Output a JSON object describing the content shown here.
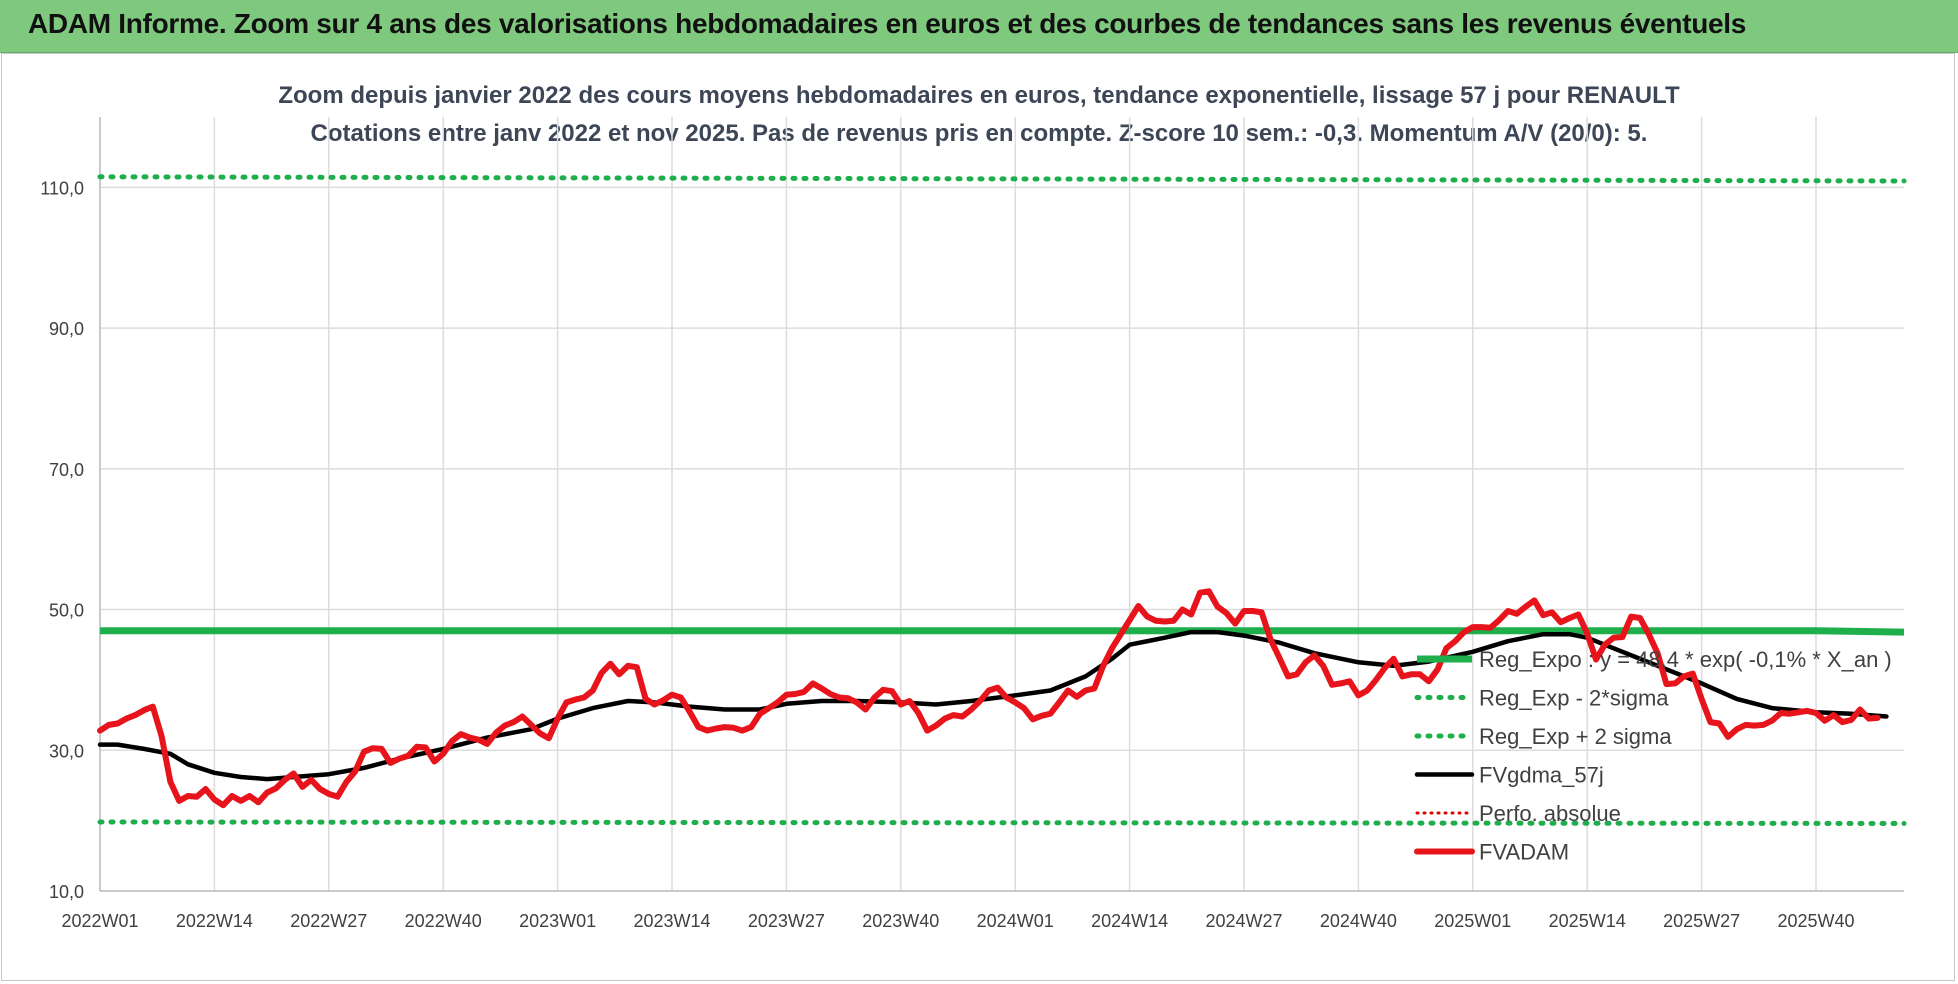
{
  "banner": {
    "title": "ADAM Informe. Zoom sur 4 ans des valorisations hebdomadaires en euros et des courbes de tendances sans les revenus éventuels"
  },
  "colors": {
    "banner_bg": "#7fc97f",
    "regression": "#1fae4c",
    "sigma_bands": "#1fae4c",
    "moving_average": "#000000",
    "perfo_absolue": "#e00000",
    "fvadam": "#e8141b",
    "grid": "#dcdcdc"
  },
  "chart_data": {
    "type": "line",
    "title": "Zoom depuis janvier 2022 des cours moyens hebdomadaires en euros, tendance exponentielle, lissage 57 j pour RENAULT",
    "subtitle": "Cotations entre janv 2022 et nov 2025. Pas de revenus pris en compte. Z-score 10 sem.: -0,3. Momentum A/V (20/0): 5.",
    "xlabel": "",
    "ylabel": "",
    "ylim": [
      10,
      120
    ],
    "yticks": [
      "10,0",
      "30,0",
      "50,0",
      "70,0",
      "90,0",
      "110,0"
    ],
    "ytick_values": [
      10,
      30,
      50,
      70,
      90,
      110
    ],
    "xticks": [
      "2022W01",
      "2022W14",
      "2022W27",
      "2022W40",
      "2023W01",
      "2023W14",
      "2023W27",
      "2023W40",
      "2024W01",
      "2024W14",
      "2024W27",
      "2024W40",
      "2025W01",
      "2025W14",
      "2025W27",
      "2025W40"
    ],
    "grid": true,
    "legend_position": "right",
    "series": [
      {
        "name": "Reg_Expo : y = 48,4 * exp( -0,1% *  X_an )",
        "style": "solid-thick",
        "points": [
          [
            "2022W01",
            47.0
          ],
          [
            "2024W40",
            47.0
          ],
          [
            "2025W40",
            47.0
          ],
          [
            "2025W50",
            46.8
          ]
        ]
      },
      {
        "name": "Reg_Exp - 2*sigma",
        "style": "dotted",
        "points": [
          [
            "2022W01",
            19.8
          ],
          [
            "2025W50",
            19.6
          ]
        ]
      },
      {
        "name": "Reg_Exp + 2 sigma",
        "style": "dotted",
        "points": [
          [
            "2022W01",
            111.5
          ],
          [
            "2025W50",
            110.9
          ]
        ]
      },
      {
        "name": "FVgdma_57j",
        "style": "solid",
        "points": [
          [
            "2022W01",
            30.8
          ],
          [
            "2022W03",
            30.8
          ],
          [
            "2022W06",
            30.2
          ],
          [
            "2022W09",
            29.5
          ],
          [
            "2022W11",
            28.0
          ],
          [
            "2022W14",
            26.8
          ],
          [
            "2022W17",
            26.2
          ],
          [
            "2022W20",
            25.9
          ],
          [
            "2022W23",
            26.2
          ],
          [
            "2022W27",
            26.6
          ],
          [
            "2022W31",
            27.5
          ],
          [
            "2022W35",
            28.8
          ],
          [
            "2022W40",
            30.2
          ],
          [
            "2022W45",
            31.8
          ],
          [
            "2022W50",
            33.0
          ],
          [
            "2023W01",
            34.5
          ],
          [
            "2023W05",
            36.0
          ],
          [
            "2023W09",
            37.0
          ],
          [
            "2023W12",
            36.8
          ],
          [
            "2023W16",
            36.2
          ],
          [
            "2023W20",
            35.8
          ],
          [
            "2023W24",
            35.8
          ],
          [
            "2023W27",
            36.6
          ],
          [
            "2023W31",
            37.0
          ],
          [
            "2023W35",
            37.0
          ],
          [
            "2023W40",
            36.8
          ],
          [
            "2023W44",
            36.5
          ],
          [
            "2023W48",
            37.0
          ],
          [
            "2024W01",
            37.8
          ],
          [
            "2024W05",
            38.5
          ],
          [
            "2024W09",
            40.5
          ],
          [
            "2024W12",
            43.0
          ],
          [
            "2024W14",
            45.0
          ],
          [
            "2024W18",
            46.0
          ],
          [
            "2024W21",
            46.8
          ],
          [
            "2024W24",
            46.8
          ],
          [
            "2024W27",
            46.3
          ],
          [
            "2024W31",
            45.3
          ],
          [
            "2024W35",
            43.8
          ],
          [
            "2024W40",
            42.5
          ],
          [
            "2024W44",
            42.0
          ],
          [
            "2024W48",
            42.6
          ],
          [
            "2025W01",
            44.0
          ],
          [
            "2025W05",
            45.5
          ],
          [
            "2025W09",
            46.5
          ],
          [
            "2025W12",
            46.5
          ],
          [
            "2025W14",
            46.0
          ],
          [
            "2025W18",
            44.0
          ],
          [
            "2025W22",
            42.0
          ],
          [
            "2025W27",
            39.5
          ],
          [
            "2025W31",
            37.3
          ],
          [
            "2025W35",
            36.0
          ],
          [
            "2025W40",
            35.4
          ],
          [
            "2025W44",
            35.2
          ],
          [
            "2025W48",
            34.8
          ]
        ]
      },
      {
        "name": "Perfo. absolue",
        "style": "dotted",
        "points": []
      },
      {
        "name": "FVADAM",
        "style": "solid-thick",
        "points": [
          [
            "2022W01",
            32.8
          ],
          [
            "2022W02",
            33.6
          ],
          [
            "2022W03",
            33.8
          ],
          [
            "2022W04",
            34.5
          ],
          [
            "2022W05",
            35.0
          ],
          [
            "2022W06",
            35.7
          ],
          [
            "2022W07",
            36.2
          ],
          [
            "2022W08",
            32.0
          ],
          [
            "2022W09",
            25.5
          ],
          [
            "2022W10",
            22.8
          ],
          [
            "2022W11",
            23.5
          ],
          [
            "2022W12",
            23.4
          ],
          [
            "2022W13",
            24.5
          ],
          [
            "2022W14",
            23.0
          ],
          [
            "2022W15",
            22.2
          ],
          [
            "2022W16",
            23.5
          ],
          [
            "2022W17",
            22.8
          ],
          [
            "2022W18",
            23.5
          ],
          [
            "2022W19",
            22.6
          ],
          [
            "2022W20",
            24.0
          ],
          [
            "2022W21",
            24.6
          ],
          [
            "2022W22",
            25.8
          ],
          [
            "2022W23",
            26.7
          ],
          [
            "2022W24",
            24.8
          ],
          [
            "2022W25",
            25.8
          ],
          [
            "2022W26",
            24.5
          ],
          [
            "2022W27",
            23.8
          ],
          [
            "2022W28",
            23.4
          ],
          [
            "2022W29",
            25.5
          ],
          [
            "2022W30",
            27.0
          ],
          [
            "2022W31",
            29.8
          ],
          [
            "2022W32",
            30.3
          ],
          [
            "2022W33",
            30.2
          ],
          [
            "2022W34",
            28.2
          ],
          [
            "2022W35",
            28.8
          ],
          [
            "2022W36",
            29.2
          ],
          [
            "2022W37",
            30.5
          ],
          [
            "2022W38",
            30.4
          ],
          [
            "2022W39",
            28.4
          ],
          [
            "2022W40",
            29.5
          ],
          [
            "2022W41",
            31.3
          ],
          [
            "2022W42",
            32.3
          ],
          [
            "2022W43",
            31.8
          ],
          [
            "2022W44",
            31.5
          ],
          [
            "2022W45",
            30.9
          ],
          [
            "2022W46",
            32.5
          ],
          [
            "2022W47",
            33.5
          ],
          [
            "2022W48",
            34.0
          ],
          [
            "2022W49",
            34.8
          ],
          [
            "2022W50",
            33.6
          ],
          [
            "2022W51",
            32.4
          ],
          [
            "2022W52",
            31.7
          ],
          [
            "2023W01",
            34.5
          ],
          [
            "2023W02",
            36.8
          ],
          [
            "2023W03",
            37.2
          ],
          [
            "2023W04",
            37.5
          ],
          [
            "2023W05",
            38.5
          ],
          [
            "2023W06",
            41.0
          ],
          [
            "2023W07",
            42.3
          ],
          [
            "2023W08",
            40.8
          ],
          [
            "2023W09",
            42.0
          ],
          [
            "2023W10",
            41.8
          ],
          [
            "2023W11",
            37.3
          ],
          [
            "2023W12",
            36.5
          ],
          [
            "2023W13",
            37.1
          ],
          [
            "2023W14",
            37.9
          ],
          [
            "2023W15",
            37.5
          ],
          [
            "2023W16",
            35.5
          ],
          [
            "2023W17",
            33.3
          ],
          [
            "2023W18",
            32.8
          ],
          [
            "2023W19",
            33.1
          ],
          [
            "2023W20",
            33.3
          ],
          [
            "2023W21",
            33.2
          ],
          [
            "2023W22",
            32.8
          ],
          [
            "2023W23",
            33.3
          ],
          [
            "2023W24",
            35.2
          ],
          [
            "2023W25",
            36.0
          ],
          [
            "2023W26",
            36.8
          ],
          [
            "2023W27",
            37.9
          ],
          [
            "2023W28",
            38.0
          ],
          [
            "2023W29",
            38.3
          ],
          [
            "2023W30",
            39.5
          ],
          [
            "2023W31",
            38.8
          ],
          [
            "2023W32",
            38.0
          ],
          [
            "2023W33",
            37.5
          ],
          [
            "2023W34",
            37.4
          ],
          [
            "2023W35",
            36.8
          ],
          [
            "2023W36",
            35.8
          ],
          [
            "2023W37",
            37.5
          ],
          [
            "2023W38",
            38.6
          ],
          [
            "2023W39",
            38.4
          ],
          [
            "2023W40",
            36.5
          ],
          [
            "2023W41",
            37.0
          ],
          [
            "2023W42",
            35.3
          ],
          [
            "2023W43",
            32.8
          ],
          [
            "2023W44",
            33.5
          ],
          [
            "2023W45",
            34.5
          ],
          [
            "2023W46",
            35.0
          ],
          [
            "2023W47",
            34.8
          ],
          [
            "2023W48",
            35.8
          ],
          [
            "2023W49",
            37.0
          ],
          [
            "2023W50",
            38.5
          ],
          [
            "2023W51",
            38.9
          ],
          [
            "2023W52",
            37.5
          ],
          [
            "2024W01",
            36.8
          ],
          [
            "2024W02",
            36.0
          ],
          [
            "2024W03",
            34.4
          ],
          [
            "2024W04",
            34.9
          ],
          [
            "2024W05",
            35.2
          ],
          [
            "2024W06",
            36.8
          ],
          [
            "2024W07",
            38.5
          ],
          [
            "2024W08",
            37.6
          ],
          [
            "2024W09",
            38.5
          ],
          [
            "2024W10",
            38.8
          ],
          [
            "2024W11",
            42.0
          ],
          [
            "2024W12",
            44.5
          ],
          [
            "2024W13",
            46.5
          ],
          [
            "2024W14",
            48.5
          ],
          [
            "2024W15",
            50.5
          ],
          [
            "2024W16",
            49.0
          ],
          [
            "2024W17",
            48.4
          ],
          [
            "2024W18",
            48.3
          ],
          [
            "2024W19",
            48.4
          ],
          [
            "2024W20",
            50.0
          ],
          [
            "2024W21",
            49.3
          ],
          [
            "2024W22",
            52.4
          ],
          [
            "2024W23",
            52.6
          ],
          [
            "2024W24",
            50.4
          ],
          [
            "2024W25",
            49.5
          ],
          [
            "2024W26",
            48.0
          ],
          [
            "2024W27",
            49.8
          ],
          [
            "2024W28",
            49.8
          ],
          [
            "2024W29",
            49.6
          ],
          [
            "2024W30",
            45.8
          ],
          [
            "2024W31",
            43.2
          ],
          [
            "2024W32",
            40.5
          ],
          [
            "2024W33",
            40.8
          ],
          [
            "2024W34",
            42.5
          ],
          [
            "2024W35",
            43.5
          ],
          [
            "2024W36",
            42.0
          ],
          [
            "2024W37",
            39.3
          ],
          [
            "2024W38",
            39.5
          ],
          [
            "2024W39",
            39.8
          ],
          [
            "2024W40",
            37.8
          ],
          [
            "2024W41",
            38.5
          ],
          [
            "2024W42",
            40.0
          ],
          [
            "2024W43",
            41.7
          ],
          [
            "2024W44",
            43.0
          ],
          [
            "2024W45",
            40.5
          ],
          [
            "2024W46",
            40.8
          ],
          [
            "2024W47",
            40.8
          ],
          [
            "2024W48",
            39.8
          ],
          [
            "2024W49",
            41.5
          ],
          [
            "2024W50",
            44.5
          ],
          [
            "2024W51",
            45.5
          ],
          [
            "2024W52",
            46.8
          ],
          [
            "2025W01",
            47.5
          ],
          [
            "2025W02",
            47.5
          ],
          [
            "2025W03",
            47.4
          ],
          [
            "2025W04",
            48.5
          ],
          [
            "2025W05",
            49.8
          ],
          [
            "2025W06",
            49.4
          ],
          [
            "2025W07",
            50.4
          ],
          [
            "2025W08",
            51.3
          ],
          [
            "2025W09",
            49.2
          ],
          [
            "2025W10",
            49.6
          ],
          [
            "2025W11",
            48.2
          ],
          [
            "2025W12",
            48.8
          ],
          [
            "2025W13",
            49.3
          ],
          [
            "2025W14",
            46.6
          ],
          [
            "2025W15",
            42.9
          ],
          [
            "2025W16",
            45.0
          ],
          [
            "2025W17",
            46.0
          ],
          [
            "2025W18",
            46.1
          ],
          [
            "2025W19",
            49.0
          ],
          [
            "2025W20",
            48.8
          ],
          [
            "2025W21",
            46.5
          ],
          [
            "2025W22",
            43.8
          ],
          [
            "2025W23",
            39.4
          ],
          [
            "2025W24",
            39.5
          ],
          [
            "2025W25",
            40.5
          ],
          [
            "2025W26",
            40.9
          ],
          [
            "2025W27",
            37.3
          ],
          [
            "2025W28",
            34.0
          ],
          [
            "2025W29",
            33.8
          ],
          [
            "2025W30",
            31.9
          ],
          [
            "2025W31",
            33.0
          ],
          [
            "2025W32",
            33.6
          ],
          [
            "2025W33",
            33.5
          ],
          [
            "2025W34",
            33.6
          ],
          [
            "2025W35",
            34.2
          ],
          [
            "2025W36",
            35.3
          ],
          [
            "2025W37",
            35.2
          ],
          [
            "2025W38",
            35.4
          ],
          [
            "2025W39",
            35.6
          ],
          [
            "2025W40",
            35.3
          ],
          [
            "2025W41",
            34.2
          ],
          [
            "2025W42",
            35.0
          ],
          [
            "2025W43",
            34.0
          ],
          [
            "2025W44",
            34.3
          ],
          [
            "2025W45",
            35.8
          ],
          [
            "2025W46",
            34.5
          ],
          [
            "2025W47",
            34.6
          ]
        ]
      }
    ]
  }
}
